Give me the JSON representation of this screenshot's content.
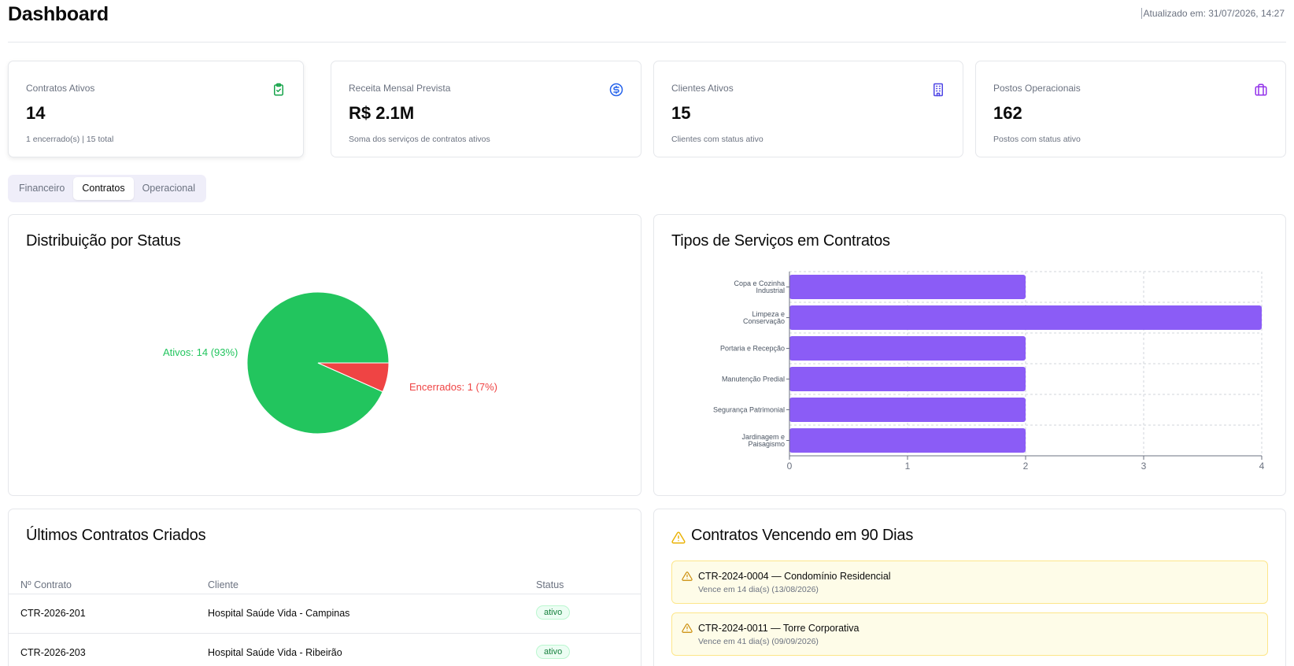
{
  "header": {
    "title": "Dashboard",
    "updated": "Atualizado em: 31/07/2026, 14:27"
  },
  "kpis": [
    {
      "label": "Contratos Ativos",
      "value": "14",
      "sub": "1 encerrado(s) | 15 total",
      "icon": "clipboard-check-icon",
      "color": "#16a34a"
    },
    {
      "label": "Receita Mensal Prevista",
      "value": "R$ 2.1M",
      "sub": "Soma dos serviços de contratos ativos",
      "icon": "dollar-circle-icon",
      "color": "#2563eb"
    },
    {
      "label": "Clientes Ativos",
      "value": "15",
      "sub": "Clientes com status ativo",
      "icon": "building-icon",
      "color": "#4f46e5"
    },
    {
      "label": "Postos Operacionais",
      "value": "162",
      "sub": "Postos com status ativo",
      "icon": "briefcase-icon",
      "color": "#9333ea"
    }
  ],
  "tabs": [
    {
      "label": "Financeiro",
      "active": false
    },
    {
      "label": "Contratos",
      "active": true
    },
    {
      "label": "Operacional",
      "active": false
    }
  ],
  "status_card": {
    "title": "Distribuição por Status"
  },
  "services_card": {
    "title": "Tipos de Serviços em Contratos"
  },
  "chart_data": [
    {
      "type": "pie",
      "title": "Distribuição por Status",
      "slices": [
        {
          "name": "Ativos",
          "value": 14,
          "percent": 93,
          "label": "Ativos: 14 (93%)",
          "color": "#22c55e"
        },
        {
          "name": "Encerrados",
          "value": 1,
          "percent": 7,
          "label": "Encerrados: 1 (7%)",
          "color": "#ef4444"
        }
      ]
    },
    {
      "type": "bar",
      "orientation": "horizontal",
      "title": "Tipos de Serviços em Contratos",
      "categories": [
        [
          "Copa e Cozinha",
          "Industrial"
        ],
        [
          "Limpeza e",
          "Conservação"
        ],
        [
          "Portaria e Recepção"
        ],
        [
          "Manutenção Predial"
        ],
        [
          "Segurança Patrimonial"
        ],
        [
          "Jardinagem e",
          "Paisagismo"
        ]
      ],
      "values": [
        2,
        4,
        2,
        2,
        2,
        2
      ],
      "xlim": [
        0,
        4
      ],
      "ticks": [
        "0",
        "1",
        "2",
        "3",
        "4"
      ],
      "grid": true,
      "color": "#8b5cf6"
    }
  ],
  "recent": {
    "title": "Últimos Contratos Criados",
    "columns": [
      "Nº Contrato",
      "Cliente",
      "Status"
    ],
    "rows": [
      {
        "contract": "CTR-2026-201",
        "client": "Hospital Saúde Vida - Campinas",
        "status": "ativo"
      },
      {
        "contract": "CTR-2026-203",
        "client": "Hospital Saúde Vida - Ribeirão",
        "status": "ativo"
      }
    ]
  },
  "expiring": {
    "title": "Contratos Vencendo em 90 Dias",
    "items": [
      {
        "title": "CTR-2024-0004 — Condomínio Residencial",
        "sub": "Vence em 14 dia(s) (13/08/2026)"
      },
      {
        "title": "CTR-2024-0011 — Torre Corporativa",
        "sub": "Vence em 41 dia(s) (09/09/2026)"
      }
    ]
  }
}
